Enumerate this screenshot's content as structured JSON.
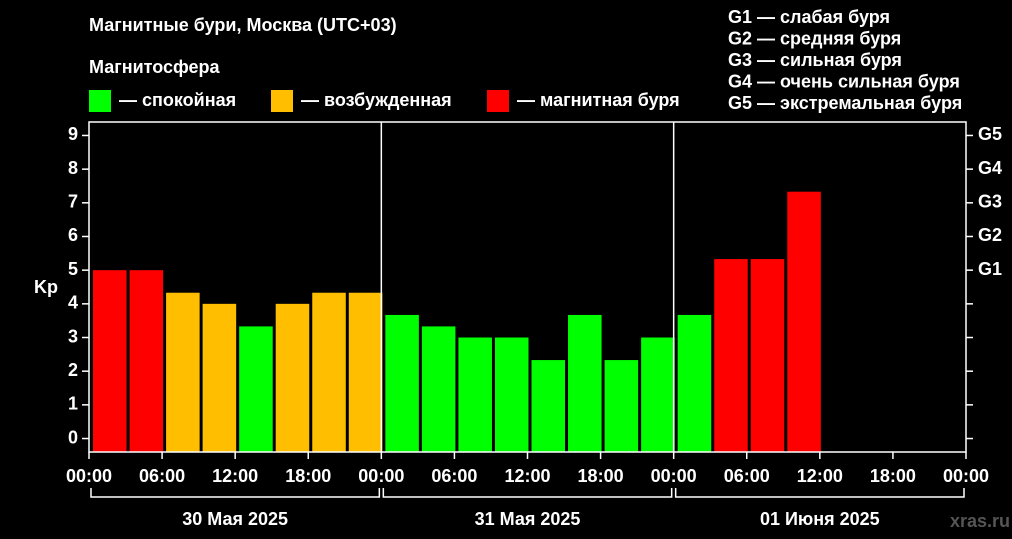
{
  "chart_data": {
    "type": "bar",
    "title": "Магнитные бури, Москва (UTC+03)",
    "legend_title": "Магнитосфера",
    "legend": [
      {
        "label": "— спокойная",
        "color": "#00ff00"
      },
      {
        "label": "— возбужденная",
        "color": "#ffbf00"
      },
      {
        "label": "— магнитная буря",
        "color": "#ff0000"
      }
    ],
    "storm_scale": [
      "G1 — слабая буря",
      "G2 — средняя буря",
      "G3 — сильная буря",
      "G4 — очень сильная буря",
      "G5 — экстремальная буря"
    ],
    "ylabel": "Kp",
    "x": [
      0,
      3,
      6,
      9,
      12,
      15,
      18,
      21,
      24,
      27,
      30,
      33,
      36,
      39,
      42,
      45,
      48,
      51,
      54,
      57,
      60,
      63,
      66,
      69
    ],
    "values": [
      5,
      5,
      4.33,
      4,
      3.33,
      4,
      4.33,
      4.33,
      3.67,
      3.33,
      3,
      3,
      2.33,
      3.67,
      2.33,
      3,
      3.67,
      5.33,
      5.33,
      7.33,
      null,
      null,
      null,
      null
    ],
    "colors": [
      "#ff0000",
      "#ff0000",
      "#ffbf00",
      "#ffbf00",
      "#00ff00",
      "#ffbf00",
      "#ffbf00",
      "#ffbf00",
      "#00ff00",
      "#00ff00",
      "#00ff00",
      "#00ff00",
      "#00ff00",
      "#00ff00",
      "#00ff00",
      "#00ff00",
      "#00ff00",
      "#ff0000",
      "#ff0000",
      "#ff0000",
      null,
      null,
      null,
      null
    ],
    "xlim": [
      0,
      72
    ],
    "xticks": [
      {
        "value": 0,
        "label": "00:00"
      },
      {
        "value": 6,
        "label": "06:00"
      },
      {
        "value": 12,
        "label": "12:00"
      },
      {
        "value": 18,
        "label": "18:00"
      },
      {
        "value": 24,
        "label": "00:00"
      },
      {
        "value": 30,
        "label": "06:00"
      },
      {
        "value": 36,
        "label": "12:00"
      },
      {
        "value": 42,
        "label": "18:00"
      },
      {
        "value": 48,
        "label": "00:00"
      },
      {
        "value": 54,
        "label": "06:00"
      },
      {
        "value": 60,
        "label": "12:00"
      },
      {
        "value": 66,
        "label": "18:00"
      },
      {
        "value": 72,
        "label": "00:00"
      }
    ],
    "ylim": [
      -0.4,
      9.4
    ],
    "yticks": [
      0,
      1,
      2,
      3,
      4,
      5,
      6,
      7,
      8,
      9
    ],
    "y2lim": [
      -0.4,
      9.4
    ],
    "y2ticks": [
      {
        "value": 5,
        "label": "G1"
      },
      {
        "value": 6,
        "label": "G2"
      },
      {
        "value": 7,
        "label": "G3"
      },
      {
        "value": 8,
        "label": "G4"
      },
      {
        "value": 9,
        "label": "G5"
      }
    ],
    "day_separators": [
      24,
      48
    ],
    "day_labels": [
      "30 Мая 2025",
      "31 Мая 2025",
      "01 Июня 2025"
    ],
    "watermark": "xras.ru"
  }
}
